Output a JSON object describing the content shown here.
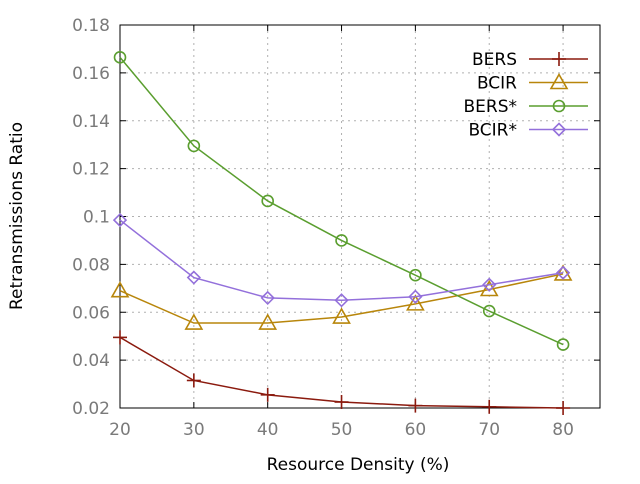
{
  "chart_data": {
    "type": "line",
    "title": "",
    "xlabel": "Resource Density (%)",
    "ylabel": "Retransmissions Ratio",
    "x": [
      20,
      30,
      40,
      50,
      60,
      70,
      80
    ],
    "xlim": [
      20,
      85
    ],
    "ylim": [
      0.02,
      0.18
    ],
    "xticks": [
      "20",
      "30",
      "40",
      "50",
      "60",
      "70",
      "80"
    ],
    "yticks": [
      "0.02",
      "0.04",
      "0.06",
      "0.08",
      "0.1",
      "0.12",
      "0.14",
      "0.16",
      "0.18"
    ],
    "grid": true,
    "legend_position": "top-right",
    "series": [
      {
        "name": "BERS",
        "marker": "plus",
        "color": "#8b1a0e",
        "values": [
          0.0495,
          0.0315,
          0.0255,
          0.0225,
          0.021,
          0.0205,
          0.02
        ]
      },
      {
        "name": "BCIR",
        "marker": "triangle",
        "color": "#b8860b",
        "values": [
          0.069,
          0.0555,
          0.0555,
          0.058,
          0.0635,
          0.0695,
          0.076
        ]
      },
      {
        "name": "BERS*",
        "marker": "circle",
        "color": "#5a9e2f",
        "values": [
          0.1665,
          0.1295,
          0.1065,
          0.09,
          0.0755,
          0.0605,
          0.0465
        ]
      },
      {
        "name": "BCIR*",
        "marker": "diamond",
        "color": "#9370db",
        "values": [
          0.0985,
          0.0745,
          0.066,
          0.065,
          0.0665,
          0.0715,
          0.0765
        ]
      }
    ]
  }
}
